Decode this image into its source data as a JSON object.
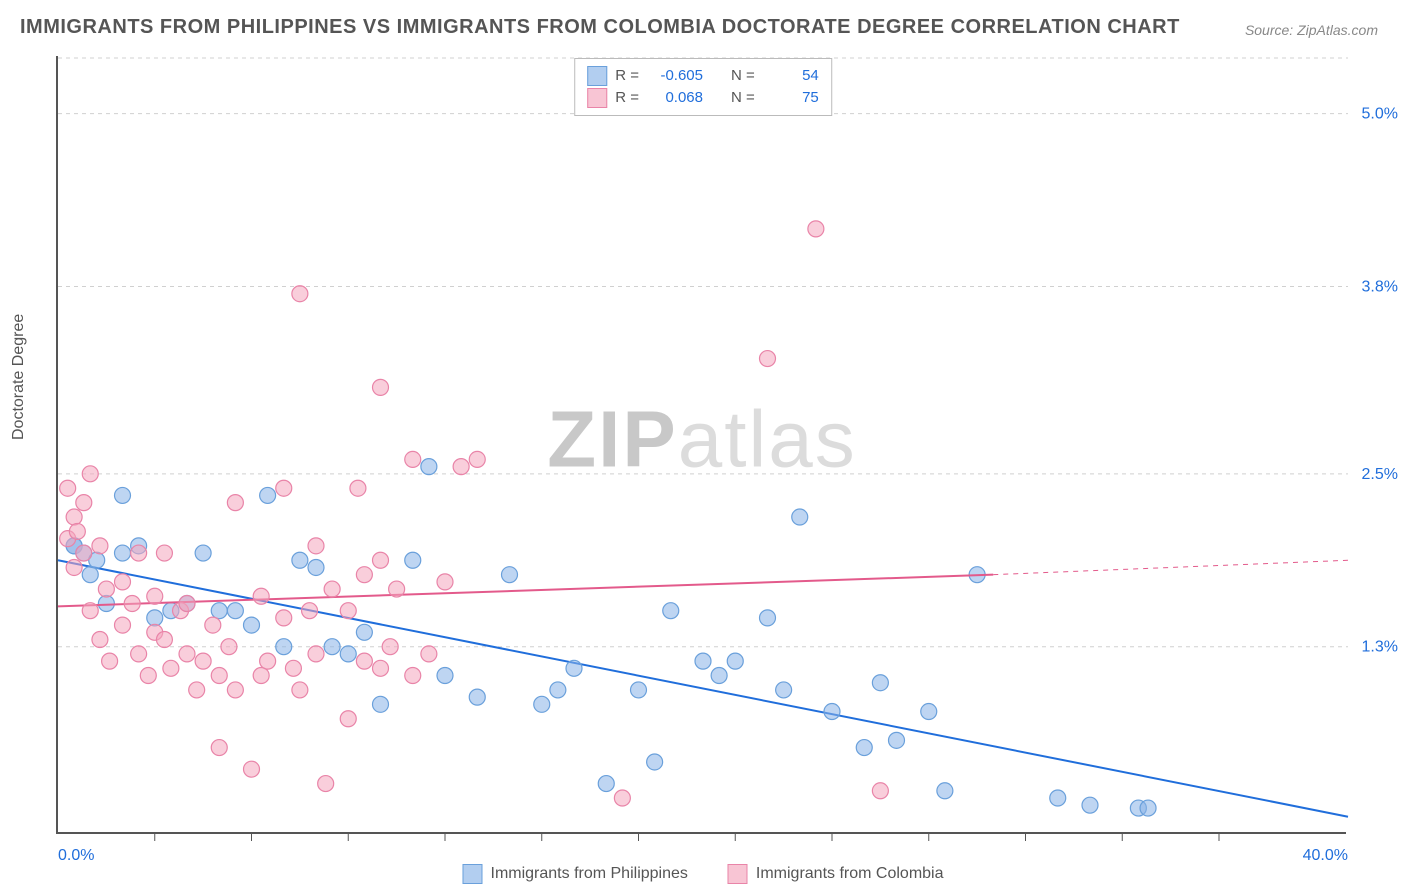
{
  "title": "IMMIGRANTS FROM PHILIPPINES VS IMMIGRANTS FROM COLOMBIA DOCTORATE DEGREE CORRELATION CHART",
  "source": "Source: ZipAtlas.com",
  "watermark": {
    "part1": "ZIP",
    "part2": "atlas"
  },
  "ylabel": "Doctorate Degree",
  "axes": {
    "xmin": 0.0,
    "xmax": 40.0,
    "ymin": 0.0,
    "ymax": 5.4,
    "xticks": [
      {
        "v": 0.0,
        "label": "0.0%"
      },
      {
        "v": 40.0,
        "label": "40.0%"
      }
    ],
    "yticks": [
      {
        "v": 1.3,
        "label": "1.3%"
      },
      {
        "v": 2.5,
        "label": "2.5%"
      },
      {
        "v": 3.8,
        "label": "3.8%"
      },
      {
        "v": 5.0,
        "label": "5.0%"
      }
    ],
    "grid_color": "#d0d0d0",
    "axis_color": "#555555"
  },
  "series": [
    {
      "id": "philippines",
      "label": "Immigrants from Philippines",
      "R": "-0.605",
      "N": "54",
      "color_fill": "rgba(136,179,232,0.55)",
      "color_stroke": "#6aa0db",
      "marker_r": 8,
      "trend": {
        "x1": 0.0,
        "y1": 1.9,
        "x2": 40.0,
        "y2": 0.12,
        "color": "#206edb",
        "width": 2,
        "dash_after_x": 40.0
      },
      "points": [
        [
          0.5,
          2.0
        ],
        [
          0.5,
          2.0
        ],
        [
          0.8,
          1.95
        ],
        [
          1.0,
          1.8
        ],
        [
          1.2,
          1.9
        ],
        [
          1.5,
          1.6
        ],
        [
          2.0,
          2.35
        ],
        [
          2.0,
          1.95
        ],
        [
          2.5,
          2.0
        ],
        [
          3.0,
          1.5
        ],
        [
          3.5,
          1.55
        ],
        [
          4.0,
          1.6
        ],
        [
          4.5,
          1.95
        ],
        [
          5.0,
          1.55
        ],
        [
          5.5,
          1.55
        ],
        [
          6.0,
          1.45
        ],
        [
          6.5,
          2.35
        ],
        [
          7.0,
          1.3
        ],
        [
          7.5,
          1.9
        ],
        [
          8.0,
          1.85
        ],
        [
          8.5,
          1.3
        ],
        [
          9.0,
          1.25
        ],
        [
          9.5,
          1.4
        ],
        [
          10.0,
          0.9
        ],
        [
          11.0,
          1.9
        ],
        [
          11.5,
          2.55
        ],
        [
          12.0,
          1.1
        ],
        [
          13.0,
          0.95
        ],
        [
          14.0,
          1.8
        ],
        [
          15.0,
          0.9
        ],
        [
          15.5,
          1.0
        ],
        [
          16.0,
          1.15
        ],
        [
          17.0,
          0.35
        ],
        [
          18.0,
          1.0
        ],
        [
          18.5,
          0.5
        ],
        [
          19.0,
          1.55
        ],
        [
          20.0,
          1.2
        ],
        [
          20.5,
          1.1
        ],
        [
          21.0,
          1.2
        ],
        [
          22.0,
          1.5
        ],
        [
          22.5,
          1.0
        ],
        [
          23.0,
          2.2
        ],
        [
          24.0,
          0.85
        ],
        [
          25.0,
          0.6
        ],
        [
          25.5,
          1.05
        ],
        [
          26.0,
          0.65
        ],
        [
          27.0,
          0.85
        ],
        [
          27.5,
          0.3
        ],
        [
          28.5,
          1.8
        ],
        [
          31.0,
          0.25
        ],
        [
          32.0,
          0.2
        ],
        [
          33.5,
          0.18
        ],
        [
          33.8,
          0.18
        ]
      ]
    },
    {
      "id": "colombia",
      "label": "Immigrants from Colombia",
      "R": "0.068",
      "N": "75",
      "color_fill": "rgba(244,166,189,0.55)",
      "color_stroke": "#e984a8",
      "marker_r": 8,
      "trend": {
        "x1": 0.0,
        "y1": 1.58,
        "x2": 29.0,
        "y2": 1.8,
        "color": "#e35a8b",
        "width": 2,
        "dash_after_x": 29.0,
        "x2_dash": 40.0,
        "y2_dash": 1.9
      },
      "points": [
        [
          0.3,
          2.4
        ],
        [
          0.3,
          2.05
        ],
        [
          0.5,
          2.2
        ],
        [
          0.5,
          1.85
        ],
        [
          0.6,
          2.1
        ],
        [
          0.8,
          2.3
        ],
        [
          0.8,
          1.95
        ],
        [
          1.0,
          1.55
        ],
        [
          1.0,
          2.5
        ],
        [
          1.3,
          2.0
        ],
        [
          1.3,
          1.35
        ],
        [
          1.5,
          1.7
        ],
        [
          1.6,
          1.2
        ],
        [
          2.0,
          1.45
        ],
        [
          2.0,
          1.75
        ],
        [
          2.3,
          1.6
        ],
        [
          2.5,
          1.25
        ],
        [
          2.5,
          1.95
        ],
        [
          2.8,
          1.1
        ],
        [
          3.0,
          1.65
        ],
        [
          3.0,
          1.4
        ],
        [
          3.3,
          1.95
        ],
        [
          3.3,
          1.35
        ],
        [
          3.5,
          1.15
        ],
        [
          3.8,
          1.55
        ],
        [
          4.0,
          1.25
        ],
        [
          4.0,
          1.6
        ],
        [
          4.3,
          1.0
        ],
        [
          4.5,
          1.2
        ],
        [
          4.8,
          1.45
        ],
        [
          5.0,
          1.1
        ],
        [
          5.0,
          0.6
        ],
        [
          5.3,
          1.3
        ],
        [
          5.5,
          2.3
        ],
        [
          5.5,
          1.0
        ],
        [
          6.0,
          0.45
        ],
        [
          6.3,
          1.65
        ],
        [
          6.3,
          1.1
        ],
        [
          6.5,
          1.2
        ],
        [
          7.0,
          2.4
        ],
        [
          7.0,
          1.5
        ],
        [
          7.3,
          1.15
        ],
        [
          7.5,
          3.75
        ],
        [
          7.5,
          1.0
        ],
        [
          7.8,
          1.55
        ],
        [
          8.0,
          2.0
        ],
        [
          8.0,
          1.25
        ],
        [
          8.3,
          0.35
        ],
        [
          8.5,
          1.7
        ],
        [
          9.0,
          1.55
        ],
        [
          9.0,
          0.8
        ],
        [
          9.3,
          2.4
        ],
        [
          9.5,
          1.8
        ],
        [
          9.5,
          1.2
        ],
        [
          10.0,
          3.1
        ],
        [
          10.0,
          1.9
        ],
        [
          10.0,
          1.15
        ],
        [
          10.3,
          1.3
        ],
        [
          10.5,
          1.7
        ],
        [
          11.0,
          2.6
        ],
        [
          11.0,
          1.1
        ],
        [
          11.5,
          1.25
        ],
        [
          12.0,
          1.75
        ],
        [
          12.5,
          2.55
        ],
        [
          13.0,
          2.6
        ],
        [
          17.5,
          0.25
        ],
        [
          22.0,
          3.3
        ],
        [
          23.5,
          4.2
        ],
        [
          25.5,
          0.3
        ]
      ]
    }
  ],
  "legend_top": {
    "rows": [
      {
        "swatch_fill": "rgba(136,179,232,0.65)",
        "swatch_border": "#6aa0db",
        "R_label": "R =",
        "R": "-0.605",
        "N_label": "N =",
        "N": "54"
      },
      {
        "swatch_fill": "rgba(244,166,189,0.65)",
        "swatch_border": "#e984a8",
        "R_label": "R =",
        "R": "0.068",
        "N_label": "N =",
        "N": "75"
      }
    ]
  },
  "legend_bottom": [
    {
      "swatch_fill": "rgba(136,179,232,0.65)",
      "swatch_border": "#6aa0db",
      "label": "Immigrants from Philippines"
    },
    {
      "swatch_fill": "rgba(244,166,189,0.65)",
      "swatch_border": "#e984a8",
      "label": "Immigrants from Colombia"
    }
  ],
  "tick_marks_x": [
    3,
    6,
    9,
    12,
    15,
    18,
    21,
    24,
    27,
    30,
    33,
    36
  ]
}
